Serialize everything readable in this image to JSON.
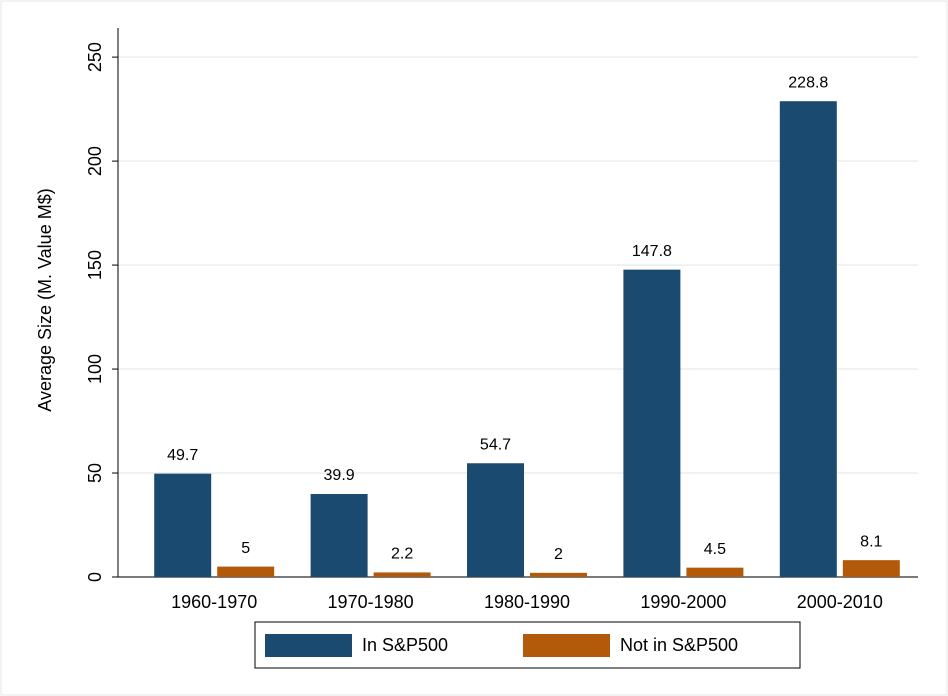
{
  "chart_data": {
    "type": "bar",
    "y_label": "Average Size (M. Value M$)",
    "categories": [
      "1960-1970",
      "1970-1980",
      "1980-1990",
      "1990-2000",
      "2000-2010"
    ],
    "series": [
      {
        "name": "In S&P500",
        "color": "#1b4a70",
        "values": [
          49.7,
          39.9,
          54.7,
          147.8,
          228.8
        ]
      },
      {
        "name": "Not in S&P500",
        "color": "#b35a0a",
        "values": [
          5,
          2.2,
          2,
          4.5,
          8.1
        ]
      }
    ],
    "ylim": [
      0,
      264
    ],
    "yticks": [
      0,
      50,
      100,
      150,
      200,
      250
    ],
    "grid": true
  }
}
